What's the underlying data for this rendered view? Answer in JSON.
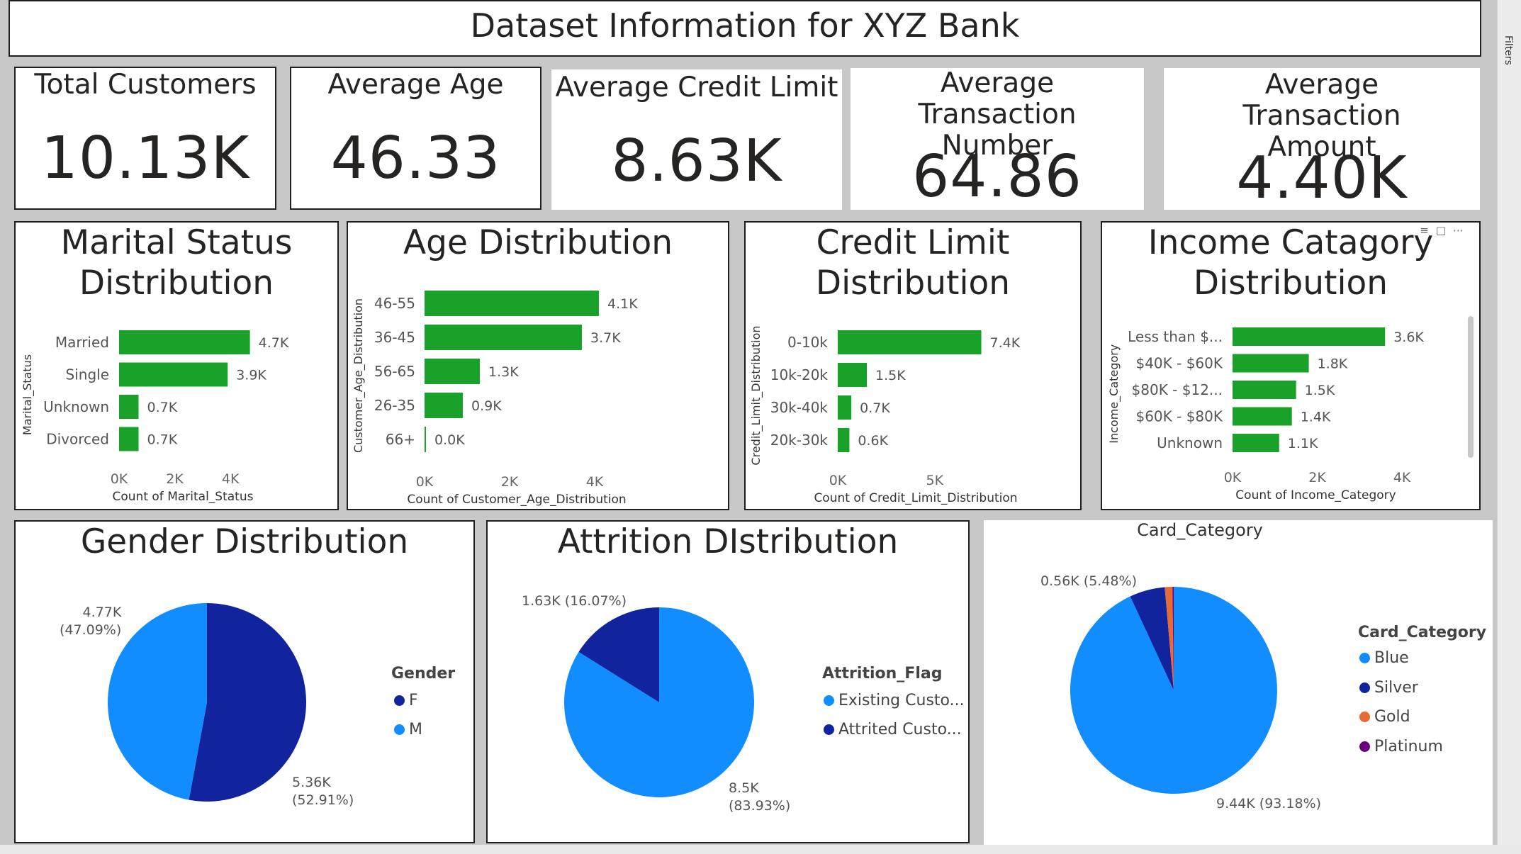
{
  "title": "Dataset Information for XYZ Bank",
  "filters_label": "Filters",
  "kpis": [
    {
      "label": "Total Customers",
      "value": "10.13K"
    },
    {
      "label": "Average Age",
      "value": "46.33"
    },
    {
      "label": "Average Credit Limit",
      "value": "8.63K"
    },
    {
      "label": "Average Transaction Number",
      "value": "64.86"
    },
    {
      "label": "Average Transaction Amount",
      "value": "4.40K"
    }
  ],
  "colors": {
    "bar": "#1aa12a",
    "blue": "#118dff",
    "dark_blue": "#12239e",
    "gold": "#e66c37",
    "platinum": "#6b007b"
  },
  "bar_charts": [
    {
      "title": "Marital Status Distribution",
      "ylabel": "Marital_Status",
      "xlabel": "Count of Marital_Status",
      "categories": [
        "Married",
        "Single",
        "Unknown",
        "Divorced"
      ],
      "values": [
        4.7,
        3.9,
        0.7,
        0.7
      ],
      "data_labels": [
        "4.7K",
        "3.9K",
        "0.7K",
        "0.7K"
      ],
      "xticks": [
        "0K",
        "2K",
        "4K"
      ],
      "xmax": 5.6
    },
    {
      "title": "Age Distribution",
      "ylabel": "Customer_Age_Distribution",
      "xlabel": "Count of Customer_Age_Distribution",
      "categories": [
        "46-55",
        "36-45",
        "56-65",
        "26-35",
        "66+"
      ],
      "values": [
        4.1,
        3.7,
        1.3,
        0.9,
        0.0
      ],
      "data_labels": [
        "4.1K",
        "3.7K",
        "1.3K",
        "0.9K",
        "0.0K"
      ],
      "xticks": [
        "0K",
        "2K",
        "4K"
      ],
      "xmax": 5.0
    },
    {
      "title": "Credit Limit Distribution",
      "ylabel": "Credit_Limit_Distribution",
      "xlabel": "Count of Credit_Limit_Distribution",
      "categories": [
        "0-10k",
        "10k-20k",
        "30k-40k",
        "20k-30k"
      ],
      "values": [
        7.4,
        1.5,
        0.7,
        0.6
      ],
      "data_labels": [
        "7.4K",
        "1.5K",
        "0.7K",
        "0.6K"
      ],
      "xticks": [
        "0K",
        "5K"
      ],
      "xmax": 9.5
    },
    {
      "title": "Income Catagory Distribution",
      "ylabel": "Income_Category",
      "xlabel": "Count of Income_Category",
      "categories": [
        "Less than $...",
        "$40K - $60K",
        "$80K - $12...",
        "$60K - $80K",
        "Unknown"
      ],
      "values": [
        3.6,
        1.8,
        1.5,
        1.4,
        1.1
      ],
      "data_labels": [
        "3.6K",
        "1.8K",
        "1.5K",
        "1.4K",
        "1.1K"
      ],
      "xticks": [
        "0K",
        "2K",
        "4K"
      ],
      "xmax": 4.6
    }
  ],
  "pies": [
    {
      "title": "Gender Distribution",
      "legend_title": "Gender",
      "legend": [
        "F",
        "M"
      ],
      "values": [
        5.36,
        4.77
      ],
      "labels": [
        "5.36K\n(52.91%)",
        "4.77K\n(47.09%)"
      ]
    },
    {
      "title": "Attrition DIstribution",
      "legend_title": "Attrition_Flag",
      "legend": [
        "Existing Custo...",
        "Attrited Custo..."
      ],
      "values": [
        8.5,
        1.63
      ],
      "labels": [
        "8.5K\n(83.93%)",
        "1.63K (16.07%)"
      ]
    },
    {
      "title": "Card_Category",
      "legend_title": "Card_Category",
      "legend": [
        "Blue",
        "Silver",
        "Gold",
        "Platinum"
      ],
      "values": [
        9.44,
        0.56,
        0.12,
        0.02
      ],
      "labels": [
        "9.44K (93.18%)",
        "0.56K (5.48%)"
      ]
    }
  ],
  "chart_data": [
    {
      "type": "bar",
      "title": "Marital Status Distribution",
      "xlabel": "Count of Marital_Status",
      "ylabel": "Marital_Status",
      "categories": [
        "Married",
        "Single",
        "Unknown",
        "Divorced"
      ],
      "values": [
        4.7,
        3.9,
        0.7,
        0.7
      ]
    },
    {
      "type": "bar",
      "title": "Age Distribution",
      "xlabel": "Count of Customer_Age_Distribution",
      "ylabel": "Customer_Age_Distribution",
      "categories": [
        "46-55",
        "36-45",
        "56-65",
        "26-35",
        "66+"
      ],
      "values": [
        4.1,
        3.7,
        1.3,
        0.9,
        0.0
      ]
    },
    {
      "type": "bar",
      "title": "Credit Limit Distribution",
      "xlabel": "Count of Credit_Limit_Distribution",
      "ylabel": "Credit_Limit_Distribution",
      "categories": [
        "0-10k",
        "10k-20k",
        "30k-40k",
        "20k-30k"
      ],
      "values": [
        7.4,
        1.5,
        0.7,
        0.6
      ]
    },
    {
      "type": "bar",
      "title": "Income Catagory Distribution",
      "xlabel": "Count of Income_Category",
      "ylabel": "Income_Category",
      "categories": [
        "Less than $...",
        "$40K - $60K",
        "$80K - $12...",
        "$60K - $80K",
        "Unknown"
      ],
      "values": [
        3.6,
        1.8,
        1.5,
        1.4,
        1.1
      ]
    },
    {
      "type": "pie",
      "title": "Gender Distribution",
      "categories": [
        "F",
        "M"
      ],
      "values": [
        5.36,
        4.77
      ]
    },
    {
      "type": "pie",
      "title": "Attrition DIstribution",
      "categories": [
        "Existing Customer",
        "Attrited Customer"
      ],
      "values": [
        8.5,
        1.63
      ]
    },
    {
      "type": "pie",
      "title": "Card_Category",
      "categories": [
        "Blue",
        "Silver",
        "Gold",
        "Platinum"
      ],
      "values": [
        9.44,
        0.56,
        0.12,
        0.02
      ]
    }
  ]
}
